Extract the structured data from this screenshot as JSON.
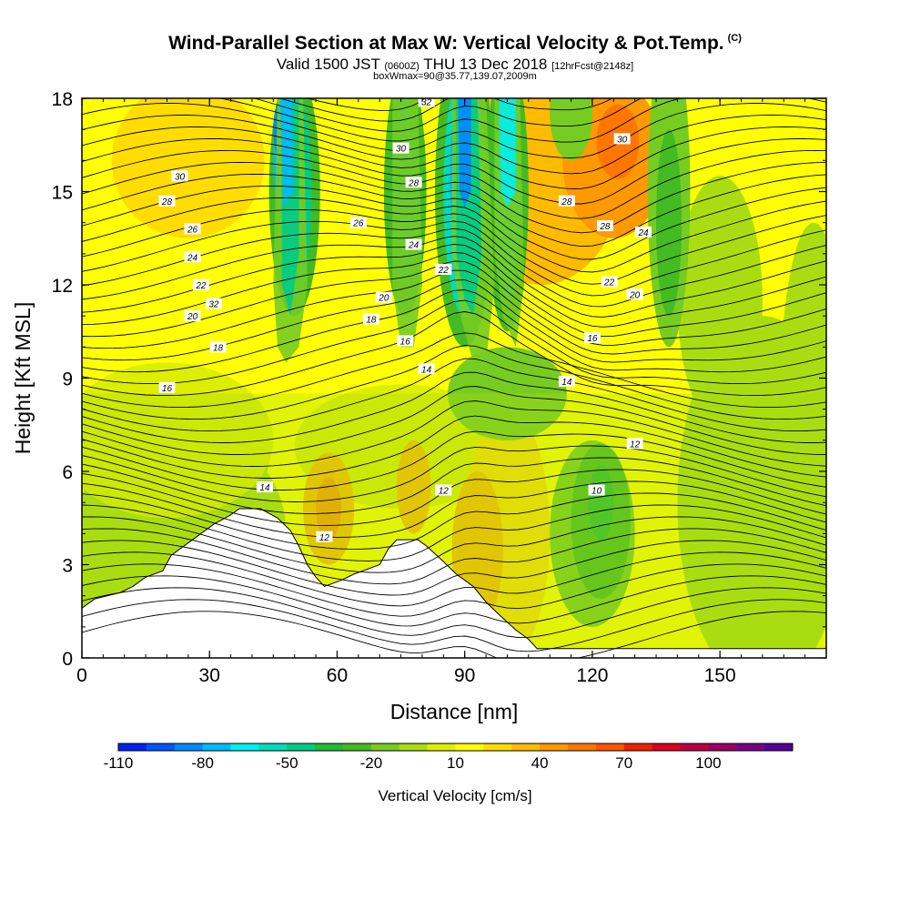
{
  "title": {
    "main": "Wind-Parallel Section at Max W: Vertical Velocity & Pot.Temp.",
    "copyright": "(C)",
    "valid_prefix": "Valid 1500 JST",
    "valid_utc": "(0600Z)",
    "valid_date": "THU 13 Dec 2018",
    "forecast": "[12hrFcst@2148z]",
    "box_info": "boxWmax=90@35.77,139.07,2009m"
  },
  "chart_data": {
    "type": "heatmap",
    "xlabel": "Distance [nm]",
    "ylabel": "Height [Kft MSL]",
    "xlim": [
      0,
      175
    ],
    "ylim": [
      0,
      18
    ],
    "x_ticks": [
      "0",
      "30",
      "60",
      "90",
      "120",
      "150"
    ],
    "y_ticks": [
      "0",
      "3",
      "6",
      "9",
      "12",
      "15",
      "18"
    ],
    "colorbar": {
      "label": "Vertical Velocity [cm/s]",
      "tick_labels": [
        "-110",
        "-80",
        "-50",
        "-20",
        "10",
        "40",
        "70",
        "100"
      ],
      "colors": [
        "#0022ee",
        "#0055ff",
        "#0088ff",
        "#00bbff",
        "#00eeee",
        "#00ddbb",
        "#00cc88",
        "#22bb33",
        "#44bb22",
        "#77cc22",
        "#aadd11",
        "#ddee00",
        "#ffff00",
        "#ffdd00",
        "#ffbb00",
        "#ff9900",
        "#ff7700",
        "#ff5500",
        "#ee2200",
        "#dd0022",
        "#bb0044",
        "#990066",
        "#770088",
        "#550099"
      ]
    },
    "terrain_kft": [
      [
        0,
        1.6
      ],
      [
        3,
        1.9
      ],
      [
        9,
        2.1
      ],
      [
        12,
        2.3
      ],
      [
        15,
        2.6
      ],
      [
        19,
        2.8
      ],
      [
        21,
        3.3
      ],
      [
        25,
        3.7
      ],
      [
        28,
        4.0
      ],
      [
        31,
        4.3
      ],
      [
        35,
        4.6
      ],
      [
        37,
        4.8
      ],
      [
        42,
        4.8
      ],
      [
        46,
        4.5
      ],
      [
        49,
        4.1
      ],
      [
        51,
        3.6
      ],
      [
        53,
        3.0
      ],
      [
        55,
        2.6
      ],
      [
        57,
        2.3
      ],
      [
        61,
        2.5
      ],
      [
        64,
        2.7
      ],
      [
        68,
        2.9
      ],
      [
        70,
        3.0
      ],
      [
        72,
        3.5
      ],
      [
        74,
        3.8
      ],
      [
        79,
        3.8
      ],
      [
        81,
        3.6
      ],
      [
        85,
        3.1
      ],
      [
        88,
        2.7
      ],
      [
        92,
        2.3
      ],
      [
        95,
        1.8
      ],
      [
        98,
        1.4
      ],
      [
        102,
        0.9
      ],
      [
        105,
        0.6
      ],
      [
        107,
        0.3
      ],
      [
        175,
        0.3
      ]
    ],
    "isentropes": {
      "labels": [
        "10",
        "12",
        "14",
        "16",
        "18",
        "20",
        "22",
        "24",
        "26",
        "28",
        "30",
        "32"
      ],
      "label_positions": [
        [
          31,
          11.4,
          "32"
        ],
        [
          81,
          17.9,
          "32"
        ],
        [
          23,
          15.5,
          "30"
        ],
        [
          75,
          16.4,
          "30"
        ],
        [
          127,
          16.7,
          "30"
        ],
        [
          20,
          14.7,
          "28"
        ],
        [
          78,
          15.3,
          "28"
        ],
        [
          114,
          14.7,
          "28"
        ],
        [
          26,
          13.8,
          "26"
        ],
        [
          65,
          14.0,
          "26"
        ],
        [
          123,
          13.9,
          "28"
        ],
        [
          26,
          12.9,
          "24"
        ],
        [
          78,
          13.3,
          "24"
        ],
        [
          132,
          13.7,
          "24"
        ],
        [
          28,
          12.0,
          "22"
        ],
        [
          85,
          12.5,
          "22"
        ],
        [
          124,
          12.1,
          "22"
        ],
        [
          26,
          11.0,
          "20"
        ],
        [
          71,
          11.6,
          "20"
        ],
        [
          130,
          11.7,
          "20"
        ],
        [
          32,
          10.0,
          "18"
        ],
        [
          68,
          10.9,
          "18"
        ],
        [
          76,
          10.2,
          "16"
        ],
        [
          120,
          10.3,
          "16"
        ],
        [
          20,
          8.7,
          "16"
        ],
        [
          81,
          9.3,
          "14"
        ],
        [
          114,
          8.9,
          "14"
        ],
        [
          130,
          6.9,
          "12"
        ],
        [
          85,
          5.4,
          "12"
        ],
        [
          57,
          3.9,
          "12"
        ],
        [
          121,
          5.4,
          "10"
        ],
        [
          43,
          5.5,
          "14"
        ]
      ]
    }
  }
}
